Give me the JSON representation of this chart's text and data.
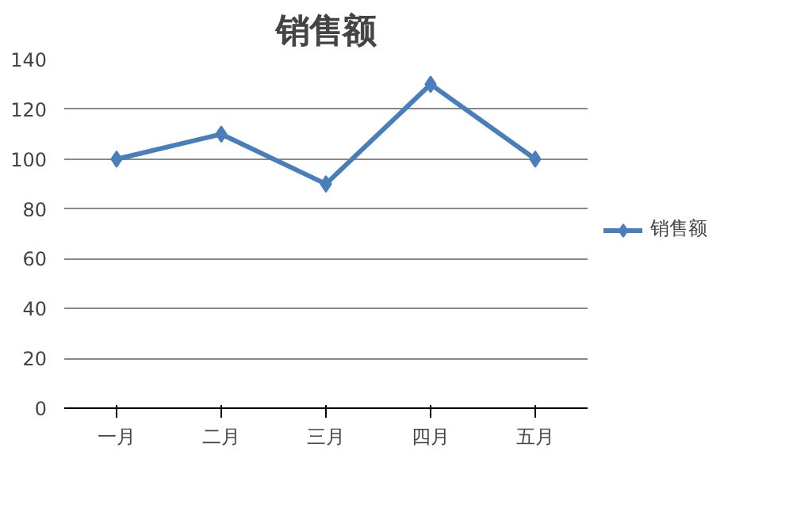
{
  "chart_data": {
    "type": "line",
    "title": "销售额",
    "categories": [
      "一月",
      "二月",
      "三月",
      "四月",
      "五月"
    ],
    "series": [
      {
        "name": "销售额",
        "color": "#4a7ebb",
        "values": [
          100,
          110,
          90,
          130,
          100
        ]
      }
    ],
    "ylim": [
      0,
      140
    ],
    "yticks": [
      0,
      20,
      40,
      60,
      80,
      100,
      120,
      140
    ],
    "grid": "y",
    "legend": "right",
    "marker": "diamond",
    "line_style": "solid"
  }
}
